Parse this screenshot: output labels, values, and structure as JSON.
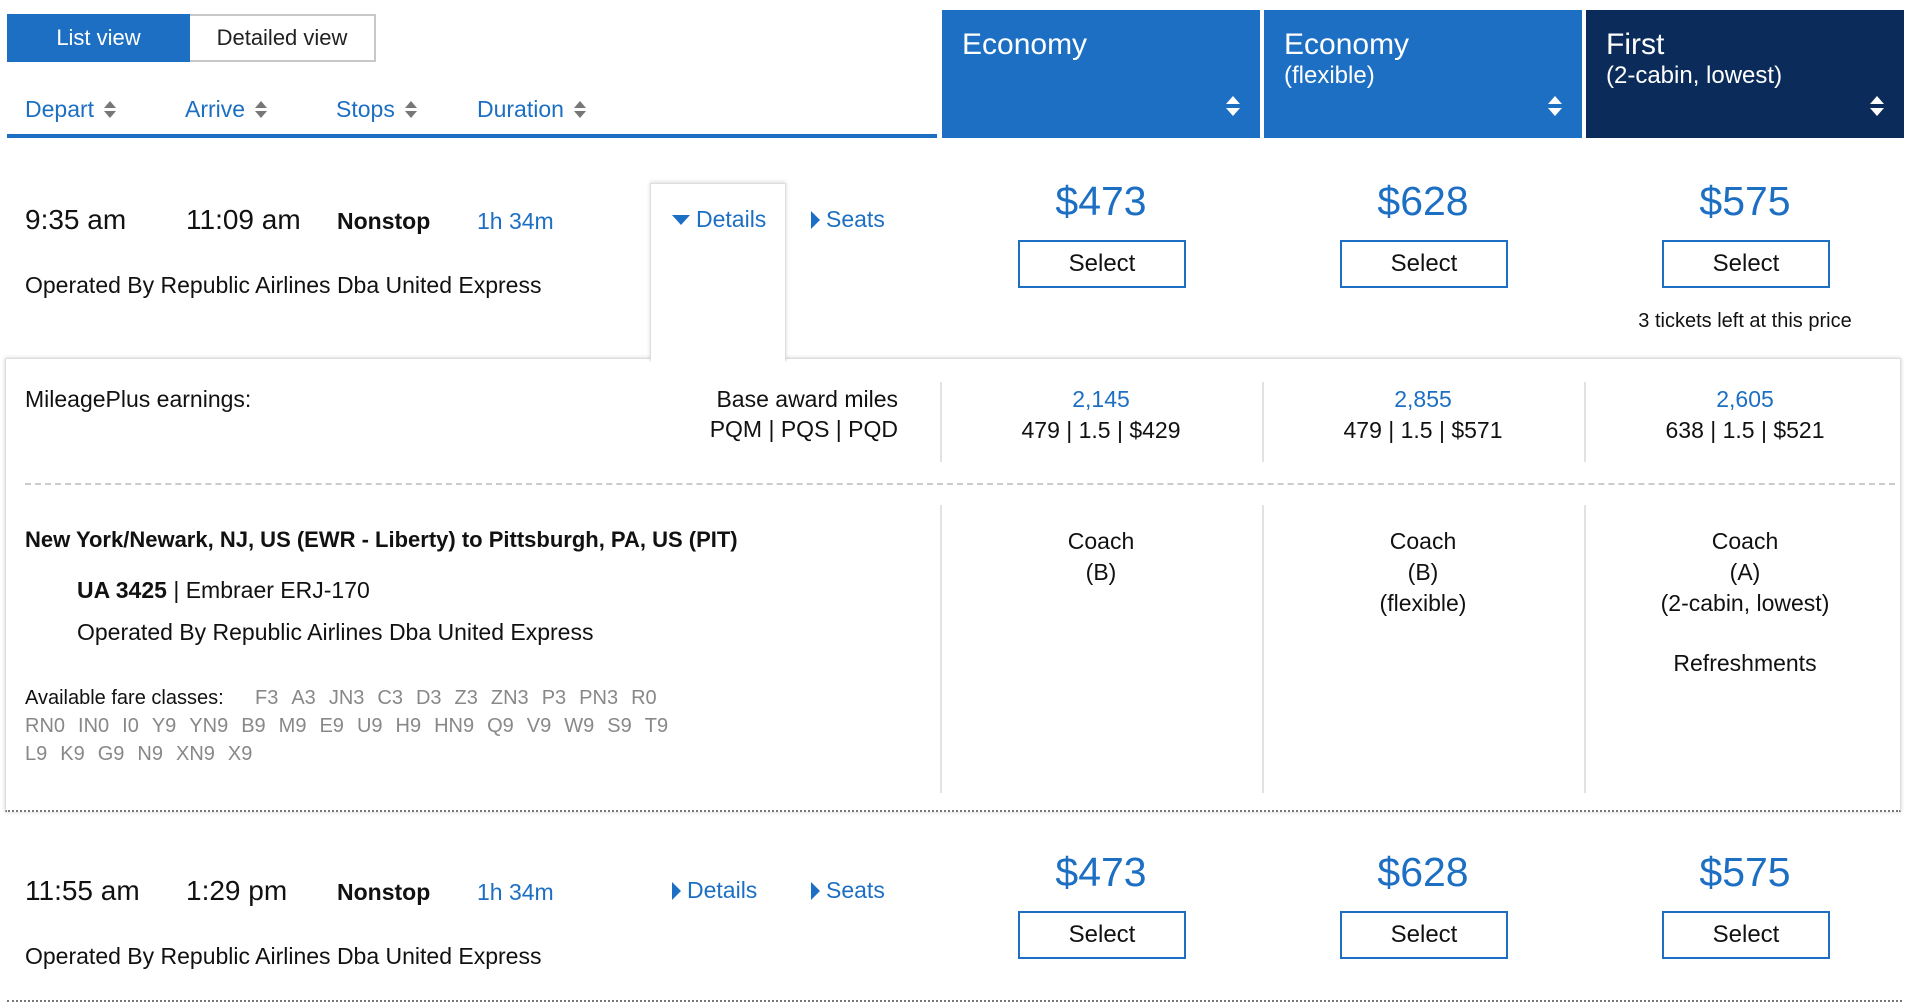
{
  "view_toggle": {
    "list": "List view",
    "detailed": "Detailed view"
  },
  "sort": {
    "depart": "Depart",
    "arrive": "Arrive",
    "stops": "Stops",
    "duration": "Duration"
  },
  "cabins": [
    {
      "name": "Economy",
      "sub": "",
      "color": "#1c6fc2"
    },
    {
      "name": "Economy",
      "sub": "(flexible)",
      "color": "#1c6fc2"
    },
    {
      "name": "First",
      "sub": "(2-cabin, lowest)",
      "color": "#0b2b5a"
    }
  ],
  "flights": [
    {
      "depart": "9:35 am",
      "arrive": "11:09 am",
      "stops": "Nonstop",
      "duration": "1h 34m",
      "operated": "Operated By Republic Airlines Dba United Express",
      "details_label": "Details",
      "seats_label": "Seats",
      "prices": [
        "$473",
        "$628",
        "$575"
      ],
      "select_label": "Select",
      "first_note": "3 tickets left at this price"
    },
    {
      "depart": "11:55 am",
      "arrive": "1:29 pm",
      "stops": "Nonstop",
      "duration": "1h 34m",
      "operated": "Operated By Republic Airlines Dba United Express",
      "details_label": "Details",
      "seats_label": "Seats",
      "prices": [
        "$473",
        "$628",
        "$575"
      ],
      "select_label": "Select"
    }
  ],
  "details": {
    "mileage_label": "MileagePlus earnings:",
    "base_award": "Base award miles",
    "pqm_line": "PQM  |  PQS  |  PQD",
    "earnings": [
      {
        "miles": "2,145",
        "pq": "479  |  1.5  |  $429"
      },
      {
        "miles": "2,855",
        "pq": "479  |  1.5  |  $571"
      },
      {
        "miles": "2,605",
        "pq": "638  |  1.5  |  $521"
      }
    ],
    "route": "New York/Newark, NJ, US (EWR - Liberty) to Pittsburgh, PA, US (PIT)",
    "flight_number": "UA 3425",
    "aircraft": "Embraer ERJ-170",
    "operated": "Operated By Republic Airlines Dba United Express",
    "fare_classes_label": "Available fare classes:",
    "fare_classes_line1": [
      "F3",
      "A3",
      "JN3",
      "C3",
      "D3",
      "Z3",
      "ZN3",
      "P3",
      "PN3",
      "R0"
    ],
    "fare_classes_line2": [
      "RN0",
      "IN0",
      "I0",
      "Y9",
      "YN9",
      "B9",
      "M9",
      "E9",
      "U9",
      "H9",
      "HN9",
      "Q9",
      "V9",
      "W9",
      "S9",
      "T9"
    ],
    "fare_classes_line3": [
      "L9",
      "K9",
      "G9",
      "N9",
      "XN9",
      "X9"
    ],
    "cabin_info": [
      {
        "line1": "Coach",
        "line2": "(B)",
        "line3": "",
        "line4": ""
      },
      {
        "line1": "Coach",
        "line2": "(B)",
        "line3": "(flexible)",
        "line4": ""
      },
      {
        "line1": "Coach",
        "line2": "(A)",
        "line3": "(2-cabin, lowest)",
        "line4": "Refreshments"
      }
    ]
  }
}
